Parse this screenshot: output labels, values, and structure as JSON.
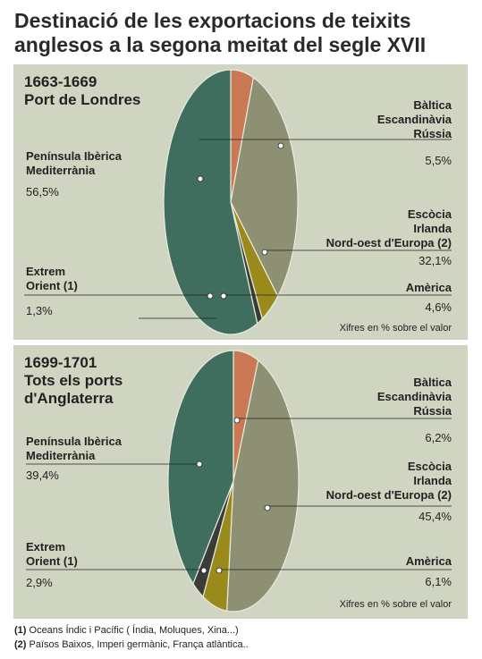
{
  "title": "Destinació de les exportacions de teixits anglesos a la segona meitat del segle XVII",
  "colors": {
    "panel_bg": "#cfd5c0",
    "iberica": "#3f6e5e",
    "baltica": "#c97a55",
    "escocia": "#8e9074",
    "america": "#9a8a1c",
    "extrem_orient": "#3a3c37"
  },
  "chart_data": [
    {
      "type": "pie",
      "title": "1663-1669\nPort de Londres",
      "note": "Xifres en % sobre el valor",
      "slices": [
        {
          "key": "baltica",
          "label": "Bàltica\nEscandinàvia\nRússia",
          "value": 5.5,
          "value_label": "5,5%"
        },
        {
          "key": "escocia",
          "label": "Escòcia\nIrlanda\nNord-oest d'Europa (2)",
          "value": 32.1,
          "value_label": "32,1%"
        },
        {
          "key": "america",
          "label": "Amèrica",
          "value": 4.6,
          "value_label": "4,6%"
        },
        {
          "key": "extrem_orient",
          "label": "Extrem\nOrient (1)",
          "value": 1.3,
          "value_label": "1,3%"
        },
        {
          "key": "iberica",
          "label": "Península Ibèrica\nMediterrània",
          "value": 56.5,
          "value_label": "56,5%"
        }
      ]
    },
    {
      "type": "pie",
      "title": "1699-1701\nTots els ports\nd'Anglaterra",
      "note": "Xifres en % sobre el valor",
      "slices": [
        {
          "key": "baltica",
          "label": "Bàltica\nEscandinàvia\nRússia",
          "value": 6.2,
          "value_label": "6,2%"
        },
        {
          "key": "escocia",
          "label": "Escòcia\nIrlanda\nNord-oest d'Europa (2)",
          "value": 45.4,
          "value_label": "45,4%"
        },
        {
          "key": "america",
          "label": "Amèrica",
          "value": 6.1,
          "value_label": "6,1%"
        },
        {
          "key": "extrem_orient",
          "label": "Extrem\nOrient (1)",
          "value": 2.9,
          "value_label": "2,9%"
        },
        {
          "key": "iberica",
          "label": "Península Ibèrica\nMediterrània",
          "value": 39.4,
          "value_label": "39,4%"
        }
      ]
    }
  ],
  "footnotes": [
    {
      "mark": "(1)",
      "text": " Oceans Índic i Pacífic ( Índia, Moluques, Xina...)"
    },
    {
      "mark": "(2)",
      "text": " Països Baixos, Imperi germànic, França atlàntica.."
    }
  ]
}
